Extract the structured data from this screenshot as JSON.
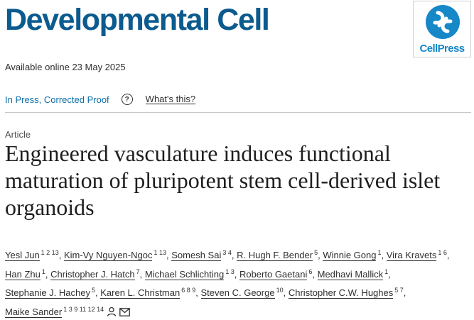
{
  "header": {
    "journal_title": "Developmental Cell",
    "logo_text": "CellPress",
    "colors": {
      "journal_blue": "#0c5b8f",
      "cellpress_blue": "#1687c7",
      "link_blue": "#0b6ea8"
    }
  },
  "availability": "Available online 23 May 2025",
  "status": {
    "label": "In Press, Corrected Proof",
    "help_icon": "question-circle-icon",
    "whats_this": "What's this?"
  },
  "article": {
    "type": "Article",
    "title": "Engineered vasculature induces functional maturation of pluripotent stem cell-derived islet organoids"
  },
  "authors": [
    {
      "name": "Yesl Jun",
      "aff": "1 2 13"
    },
    {
      "name": "Kim-Vy Nguyen-Ngoc",
      "aff": "1 13"
    },
    {
      "name": "Somesh Sai",
      "aff": "3 4"
    },
    {
      "name": "R. Hugh F. Bender",
      "aff": "5"
    },
    {
      "name": "Winnie Gong",
      "aff": "1"
    },
    {
      "name": "Vira Kravets",
      "aff": "1 6"
    },
    {
      "name": "Han Zhu",
      "aff": "1"
    },
    {
      "name": "Christopher J. Hatch",
      "aff": "7"
    },
    {
      "name": "Michael Schlichting",
      "aff": "1 3"
    },
    {
      "name": "Roberto Gaetani",
      "aff": "6"
    },
    {
      "name": "Medhavi Mallick",
      "aff": "1"
    },
    {
      "name": "Stephanie J. Hachey",
      "aff": "5"
    },
    {
      "name": "Karen L. Christman",
      "aff": "6 8 9"
    },
    {
      "name": "Steven C. George",
      "aff": "10"
    },
    {
      "name": "Christopher C.W. Hughes",
      "aff": "5 7"
    },
    {
      "name": "Maike Sander",
      "aff": "1 3 9 11 12 14"
    }
  ],
  "corresponding_icons": [
    "person-icon",
    "mail-icon"
  ]
}
